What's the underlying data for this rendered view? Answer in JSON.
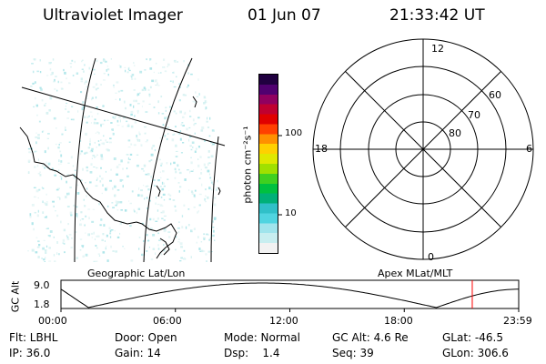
{
  "header": {
    "title": "Ultraviolet Imager",
    "date": "01 Jun 07",
    "time": "21:33:42 UT"
  },
  "colorbar": {
    "label": "photon cm⁻²s⁻¹",
    "ticks": [
      "100",
      "10"
    ],
    "colors": [
      "#f2f2f2",
      "#c8eef0",
      "#a0e4ec",
      "#50d4e0",
      "#30c0c8",
      "#00b078",
      "#00c040",
      "#40d020",
      "#a0e000",
      "#e0e800",
      "#ffd000",
      "#ff9000",
      "#ff4000",
      "#e00000",
      "#c00030",
      "#900060",
      "#500070",
      "#200040"
    ]
  },
  "left_map": {
    "label": "Geographic Lat/Lon"
  },
  "polar": {
    "label": "Apex MLat/MLT",
    "hour_labels": {
      "top": "12",
      "right": "6",
      "bottom": "0",
      "left": "18"
    },
    "lat_labels": [
      "60",
      "70",
      "80"
    ]
  },
  "altitude_plot": {
    "ylabel": "GC Alt",
    "yticks": [
      "9.0",
      "1.8"
    ],
    "xticks": [
      "00:00",
      "06:00",
      "12:00",
      "18:00",
      "23:59"
    ],
    "marker_color": "#ff0000",
    "marker_time": "21:33"
  },
  "info": {
    "row1": {
      "flt": "Flt: LBHL",
      "door": "Door: Open",
      "mode": "Mode: Normal",
      "gcalt": "GC Alt: 4.6 Re",
      "glat": "GLat: -46.5"
    },
    "row2": {
      "ip": "IP: 36.0",
      "gain": "Gain: 14",
      "dsp": "Dsp:    1.4",
      "seq": "Seq: 39",
      "glon": "GLon: 306.6"
    }
  }
}
